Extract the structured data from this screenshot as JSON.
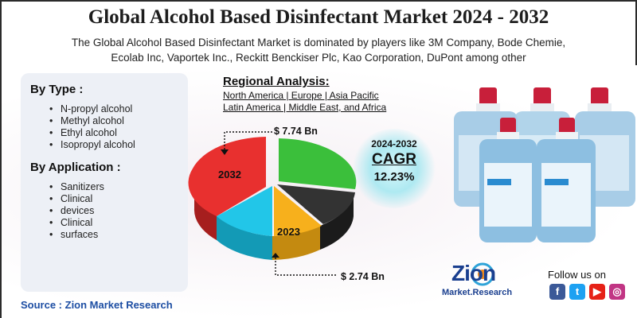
{
  "title": "Global Alcohol Based Disinfectant Market 2024 - 2032",
  "subtitle": {
    "line1": "The Global Alcohol Based Disinfectant Market is dominated by players like 3M Company, Bode Chemie,",
    "line2": "Ecolab Inc, Vaportek Inc., Reckitt Benckiser Plc, Kao Corporation, DuPont among other"
  },
  "by_type": {
    "title": "By Type :",
    "items": [
      "N-propyl alcohol",
      "Methyl alcohol",
      "Ethyl alcohol",
      "Isopropyl alcohol"
    ]
  },
  "by_application": {
    "title": "By Application :",
    "items": [
      "Sanitizers",
      "Clinical",
      "devices",
      "Clinical",
      "surfaces"
    ]
  },
  "regional": {
    "title": "Regional Analysis:",
    "line1": "North America | Europe | Asia Pacific",
    "line2": "Latin America | Middle East, and Africa"
  },
  "pie": {
    "year_2032": "2032",
    "year_2023": "2023",
    "value_2032": "$ 7.74 Bn",
    "value_2023": "$ 2.74 Bn",
    "colors": [
      "#e8302f",
      "#3bbf3b",
      "#333333",
      "#f7b01c",
      "#22c6e8"
    ]
  },
  "cagr": {
    "period": "2024-2032",
    "label": "CAGR",
    "value": "12.23%"
  },
  "logo": {
    "name": "Zion",
    "sub": "Market.Research"
  },
  "follow": "Follow us on",
  "social_icons": [
    "facebook-icon",
    "twitter-icon",
    "youtube-icon",
    "instagram-icon"
  ],
  "source": "Source : Zion Market Research"
}
